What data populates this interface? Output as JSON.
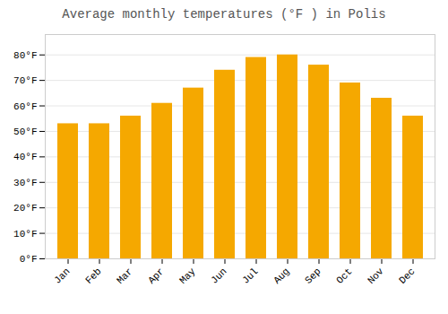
{
  "chart_data": {
    "type": "bar",
    "title": "Average monthly temperatures (°F ) in Polis",
    "categories": [
      "Jan",
      "Feb",
      "Mar",
      "Apr",
      "May",
      "Jun",
      "Jul",
      "Aug",
      "Sep",
      "Oct",
      "Nov",
      "Dec"
    ],
    "values": [
      53,
      53,
      56,
      61,
      67,
      74,
      79,
      80,
      76,
      69,
      63,
      56
    ],
    "color": "#F5A800",
    "ylim": [
      0,
      88
    ],
    "yticks": [
      {
        "value": 0,
        "label": "0°F"
      },
      {
        "value": 10,
        "label": "10°F"
      },
      {
        "value": 20,
        "label": "20°F"
      },
      {
        "value": 30,
        "label": "30°F"
      },
      {
        "value": 40,
        "label": "40°F"
      },
      {
        "value": 50,
        "label": "50°F"
      },
      {
        "value": 60,
        "label": "60°F"
      },
      {
        "value": 70,
        "label": "70°F"
      },
      {
        "value": 80,
        "label": "80°F"
      }
    ],
    "grid": true
  }
}
